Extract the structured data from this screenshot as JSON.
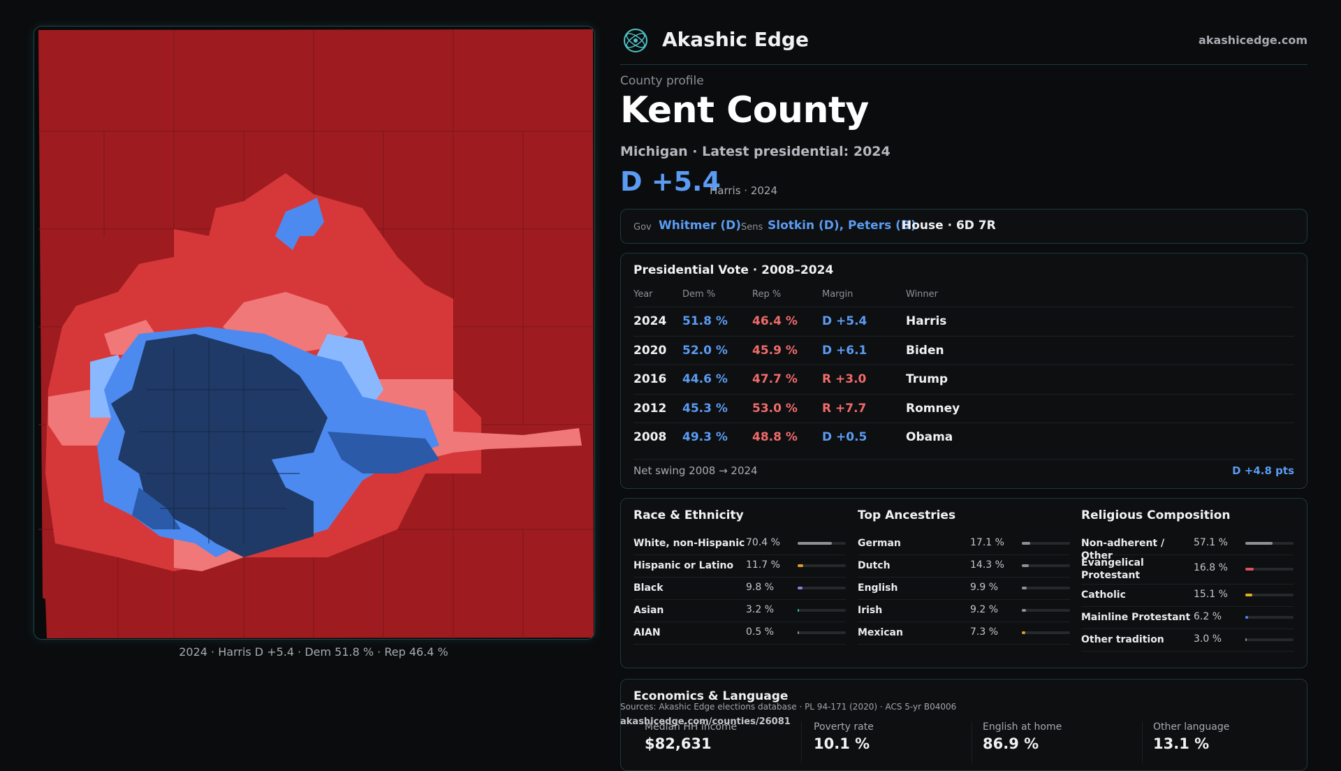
{
  "map": {
    "caption": "2024 · Harris D +5.4 · Dem 51.8 % · Rep 46.4 %",
    "colors": {
      "safe_r": "#9e1c20",
      "lean_r": "#d6383a",
      "tilt_r": "#f07878",
      "tilt_d": "#8ab8ff",
      "lean_d": "#4d8af0",
      "safe_d": "#1f3a66",
      "dark_d": "#2a5aa8"
    }
  },
  "header": {
    "brand": "Akashic Edge",
    "site": "akashicedge.com",
    "logo_icon": "atom-globe-icon"
  },
  "profile": {
    "kicker": "County profile",
    "title": "Kent County",
    "subtitle": "Michigan · Latest presidential: 2024",
    "margin": "D +5.4",
    "margin_sub": "Harris · 2024"
  },
  "officials": {
    "gov_label": "Gov",
    "gov": "Whitmer (D)",
    "sens_label": "Sens",
    "sens": "Slotkin (D), Peters (D)",
    "house": "House · 6D 7R"
  },
  "presidential": {
    "title": "Presidential Vote · 2008–2024",
    "headers": [
      "Year",
      "Dem %",
      "Rep %",
      "Margin",
      "Winner"
    ],
    "rows": [
      {
        "year": "2024",
        "dem": "51.8 %",
        "rep": "46.4 %",
        "margin": "D +5.4",
        "winner": "Harris",
        "party": "D"
      },
      {
        "year": "2020",
        "dem": "52.0 %",
        "rep": "45.9 %",
        "margin": "D +6.1",
        "winner": "Biden",
        "party": "D"
      },
      {
        "year": "2016",
        "dem": "44.6 %",
        "rep": "47.7 %",
        "margin": "R +3.0",
        "winner": "Trump",
        "party": "R"
      },
      {
        "year": "2012",
        "dem": "45.3 %",
        "rep": "53.0 %",
        "margin": "R +7.7",
        "winner": "Romney",
        "party": "R"
      },
      {
        "year": "2008",
        "dem": "49.3 %",
        "rep": "48.8 %",
        "margin": "D +0.5",
        "winner": "Obama",
        "party": "D"
      }
    ],
    "swing_label": "Net swing 2008 → 2024",
    "swing_value": "D +4.8 pts"
  },
  "race": {
    "title": "Race & Ethnicity",
    "items": [
      {
        "label": "White, non-Hispanic",
        "value": "70.4 %",
        "share": 70.4,
        "color": "#8f9196"
      },
      {
        "label": "Hispanic or Latino",
        "value": "11.7 %",
        "share": 11.7,
        "color": "#e0a020"
      },
      {
        "label": "Black",
        "value": "9.8 %",
        "share": 9.8,
        "color": "#9a7ae0"
      },
      {
        "label": "Asian",
        "value": "3.2 %",
        "share": 3.2,
        "color": "#30c0a0"
      },
      {
        "label": "AIAN",
        "value": "0.5 %",
        "share": 0.5,
        "color": "#8f9196"
      }
    ]
  },
  "ancestry": {
    "title": "Top Ancestries",
    "items": [
      {
        "label": "German",
        "value": "17.1 %",
        "share": 17.1,
        "color": "#8f9196"
      },
      {
        "label": "Dutch",
        "value": "14.3 %",
        "share": 14.3,
        "color": "#8f9196"
      },
      {
        "label": "English",
        "value": "9.9 %",
        "share": 9.9,
        "color": "#8f9196"
      },
      {
        "label": "Irish",
        "value": "9.2 %",
        "share": 9.2,
        "color": "#8f9196"
      },
      {
        "label": "Mexican",
        "value": "7.3 %",
        "share": 7.3,
        "color": "#e0a020"
      }
    ]
  },
  "religion": {
    "title": "Religious Composition",
    "items": [
      {
        "label": "Non-adherent / Other",
        "value": "57.1 %",
        "share": 57.1,
        "color": "#8f9196"
      },
      {
        "label": "Evangelical Protestant",
        "value": "16.8 %",
        "share": 16.8,
        "color": "#e05060"
      },
      {
        "label": "Catholic",
        "value": "15.1 %",
        "share": 15.1,
        "color": "#e0b020"
      },
      {
        "label": "Mainline Protestant",
        "value": "6.2 %",
        "share": 6.2,
        "color": "#4d8af0"
      },
      {
        "label": "Other tradition",
        "value": "3.0 %",
        "share": 3.0,
        "color": "#8f9196"
      }
    ]
  },
  "economics": {
    "title": "Economics & Language",
    "items": [
      {
        "label": "Median HH income",
        "value": "$82,631"
      },
      {
        "label": "Poverty rate",
        "value": "10.1 %"
      },
      {
        "label": "English at home",
        "value": "86.9 %"
      },
      {
        "label": "Other language",
        "value": "13.1 %"
      }
    ]
  },
  "footer": {
    "sources": "Sources: Akashic Edge elections database · PL 94-171 (2020) · ACS 5-yr B04006",
    "url": "akashicedge.com/counties/26081"
  }
}
